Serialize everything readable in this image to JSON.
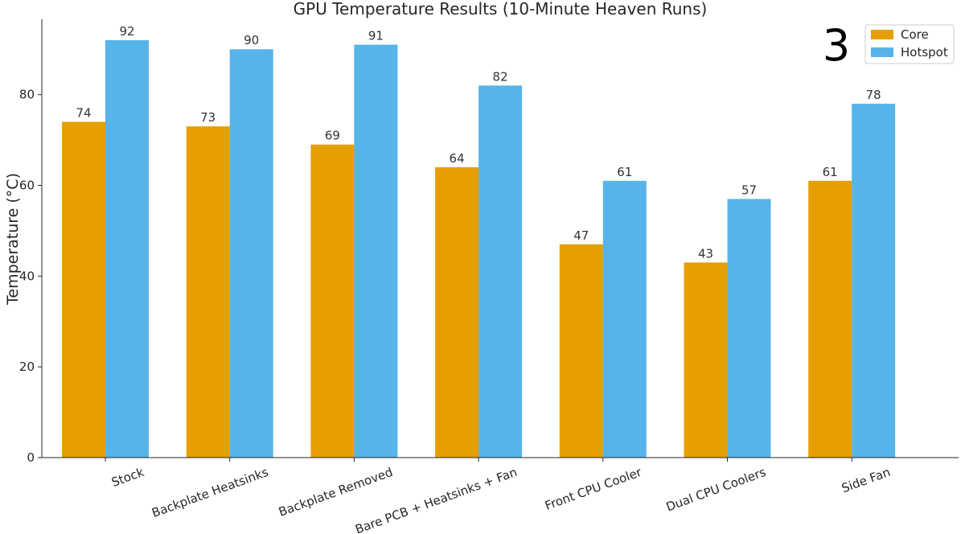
{
  "badge": "3",
  "chart_data": {
    "type": "bar",
    "title": "GPU Temperature Results (10-Minute Heaven Runs)",
    "xlabel": "",
    "ylabel": "Temperature (°C)",
    "ylim": [
      0,
      96.6
    ],
    "yticks": [
      0,
      20,
      40,
      60,
      80
    ],
    "grid": false,
    "legend_position": "top-right",
    "categories": [
      "Stock",
      "Backplate Heatsinks",
      "Backplate Removed",
      "Bare PCB + Heatsinks + Fan",
      "Front CPU Cooler",
      "Dual CPU Coolers",
      "Side Fan"
    ],
    "series": [
      {
        "name": "Core",
        "color": "#E69F00",
        "values": [
          74,
          73,
          69,
          64,
          47,
          43,
          61
        ]
      },
      {
        "name": "Hotspot",
        "color": "#56B4E9",
        "values": [
          92,
          90,
          91,
          82,
          61,
          57,
          78
        ]
      }
    ]
  }
}
